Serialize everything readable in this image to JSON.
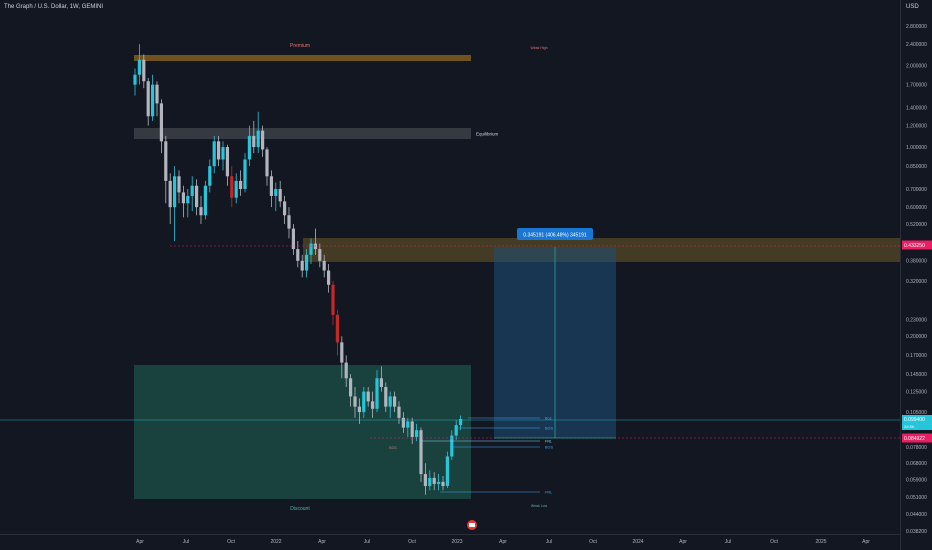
{
  "header": {
    "title": "The Graph / U.S. Dollar, 1W, GEMINI",
    "currency": "USD"
  },
  "colors": {
    "background": "#131722",
    "up": "#26c6da",
    "down": "#b2b5be",
    "down_highlight": "#c62828",
    "premium": "#7a5a1f",
    "equilibrium": "#3a3d46",
    "discount": "#1b4a44",
    "supply": "#6b5a25",
    "target_zone": "#1e4e7a",
    "current_price": "#26c6da",
    "entry_price": "#e91e63"
  },
  "chart_data": {
    "type": "candlestick",
    "title": "The Graph / U.S. Dollar, 1W, GEMINI",
    "y_scale": "log",
    "ylim": [
      0.037,
      3.3
    ],
    "x_labels": [
      "Apr",
      "Jul",
      "Oct",
      "2022",
      "Apr",
      "Jul",
      "Oct",
      "2023",
      "Apr",
      "Jul",
      "Oct",
      "2024",
      "Apr",
      "Jul",
      "Oct",
      "2025",
      "Apr"
    ],
    "y_ticks": [
      "2.800000",
      "2.400000",
      "2.000000",
      "1.700000",
      "1.400000",
      "1.200000",
      "1.000000",
      "0.850000",
      "0.700000",
      "0.600000",
      "0.520000",
      "0.380000",
      "0.320000",
      "0.230000",
      "0.200000",
      "0.170000",
      "0.145000",
      "0.125000",
      "0.105000",
      "0.078000",
      "0.068000",
      "0.059000",
      "0.051000",
      "0.044000",
      "0.038200"
    ],
    "price_tags": {
      "current": "0.099400",
      "current_sub": "2d 8h",
      "entry": "0.084922",
      "target": "0.433250"
    },
    "zone_labels": {
      "premium": "Premium",
      "equilibrium": "Equilibrium",
      "discount": "Discount",
      "weak_high": "Weak High",
      "weak_low": "Weak Low"
    },
    "projection_label": "0.345191 (406.48%) 345191",
    "level_labels": [
      "Bos",
      "BOS",
      "FRL",
      "BOS",
      "FRL"
    ],
    "small_labels": [
      "BOS"
    ],
    "candles": [
      {
        "o": 1.7,
        "h": 1.95,
        "l": 1.55,
        "c": 1.85
      },
      {
        "o": 1.85,
        "h": 2.4,
        "l": 1.7,
        "c": 2.1
      },
      {
        "o": 2.1,
        "h": 2.2,
        "l": 1.65,
        "c": 1.75
      },
      {
        "o": 1.75,
        "h": 1.8,
        "l": 1.2,
        "c": 1.3
      },
      {
        "o": 1.3,
        "h": 1.85,
        "l": 1.25,
        "c": 1.7
      },
      {
        "o": 1.7,
        "h": 1.75,
        "l": 1.3,
        "c": 1.45
      },
      {
        "o": 1.45,
        "h": 1.5,
        "l": 0.95,
        "c": 1.05
      },
      {
        "o": 1.05,
        "h": 1.1,
        "l": 0.62,
        "c": 0.75
      },
      {
        "o": 0.75,
        "h": 0.8,
        "l": 0.52,
        "c": 0.6
      },
      {
        "o": 0.6,
        "h": 0.85,
        "l": 0.45,
        "c": 0.78
      },
      {
        "o": 0.78,
        "h": 0.82,
        "l": 0.62,
        "c": 0.68
      },
      {
        "o": 0.68,
        "h": 0.72,
        "l": 0.55,
        "c": 0.62
      },
      {
        "o": 0.62,
        "h": 0.7,
        "l": 0.55,
        "c": 0.66
      },
      {
        "o": 0.66,
        "h": 0.78,
        "l": 0.58,
        "c": 0.72
      },
      {
        "o": 0.72,
        "h": 0.76,
        "l": 0.56,
        "c": 0.6
      },
      {
        "o": 0.6,
        "h": 0.66,
        "l": 0.52,
        "c": 0.56
      },
      {
        "o": 0.56,
        "h": 0.75,
        "l": 0.54,
        "c": 0.72
      },
      {
        "o": 0.72,
        "h": 0.9,
        "l": 0.68,
        "c": 0.85
      },
      {
        "o": 0.85,
        "h": 1.1,
        "l": 0.8,
        "c": 1.05
      },
      {
        "o": 1.05,
        "h": 1.1,
        "l": 0.85,
        "c": 0.9
      },
      {
        "o": 0.9,
        "h": 1.05,
        "l": 0.82,
        "c": 1.0
      },
      {
        "o": 1.0,
        "h": 1.02,
        "l": 0.72,
        "c": 0.78
      },
      {
        "o": 0.78,
        "h": 0.85,
        "l": 0.6,
        "c": 0.65
      },
      {
        "o": 0.65,
        "h": 0.8,
        "l": 0.62,
        "c": 0.75
      },
      {
        "o": 0.75,
        "h": 0.82,
        "l": 0.66,
        "c": 0.7
      },
      {
        "o": 0.7,
        "h": 0.95,
        "l": 0.68,
        "c": 0.9
      },
      {
        "o": 0.9,
        "h": 1.2,
        "l": 0.85,
        "c": 1.1
      },
      {
        "o": 1.1,
        "h": 1.25,
        "l": 0.95,
        "c": 1.0
      },
      {
        "o": 1.0,
        "h": 1.35,
        "l": 0.95,
        "c": 1.15
      },
      {
        "o": 1.15,
        "h": 1.2,
        "l": 0.92,
        "c": 0.98
      },
      {
        "o": 0.98,
        "h": 1.0,
        "l": 0.72,
        "c": 0.78
      },
      {
        "o": 0.78,
        "h": 0.82,
        "l": 0.6,
        "c": 0.66
      },
      {
        "o": 0.66,
        "h": 0.74,
        "l": 0.58,
        "c": 0.7
      },
      {
        "o": 0.7,
        "h": 0.75,
        "l": 0.6,
        "c": 0.63
      },
      {
        "o": 0.63,
        "h": 0.66,
        "l": 0.52,
        "c": 0.56
      },
      {
        "o": 0.56,
        "h": 0.6,
        "l": 0.46,
        "c": 0.5
      },
      {
        "o": 0.5,
        "h": 0.52,
        "l": 0.4,
        "c": 0.42
      },
      {
        "o": 0.42,
        "h": 0.45,
        "l": 0.36,
        "c": 0.38
      },
      {
        "o": 0.38,
        "h": 0.4,
        "l": 0.33,
        "c": 0.35
      },
      {
        "o": 0.35,
        "h": 0.42,
        "l": 0.33,
        "c": 0.4
      },
      {
        "o": 0.4,
        "h": 0.46,
        "l": 0.37,
        "c": 0.44
      },
      {
        "o": 0.44,
        "h": 0.5,
        "l": 0.4,
        "c": 0.42
      },
      {
        "o": 0.42,
        "h": 0.44,
        "l": 0.36,
        "c": 0.38
      },
      {
        "o": 0.38,
        "h": 0.4,
        "l": 0.33,
        "c": 0.35
      },
      {
        "o": 0.35,
        "h": 0.37,
        "l": 0.29,
        "c": 0.31
      },
      {
        "o": 0.31,
        "h": 0.32,
        "l": 0.22,
        "c": 0.24
      },
      {
        "o": 0.24,
        "h": 0.25,
        "l": 0.17,
        "c": 0.19
      },
      {
        "o": 0.19,
        "h": 0.2,
        "l": 0.14,
        "c": 0.16
      },
      {
        "o": 0.16,
        "h": 0.17,
        "l": 0.13,
        "c": 0.14
      },
      {
        "o": 0.14,
        "h": 0.145,
        "l": 0.11,
        "c": 0.12
      },
      {
        "o": 0.12,
        "h": 0.13,
        "l": 0.1,
        "c": 0.11
      },
      {
        "o": 0.11,
        "h": 0.118,
        "l": 0.095,
        "c": 0.105
      },
      {
        "o": 0.105,
        "h": 0.13,
        "l": 0.1,
        "c": 0.125
      },
      {
        "o": 0.125,
        "h": 0.13,
        "l": 0.11,
        "c": 0.115
      },
      {
        "o": 0.115,
        "h": 0.125,
        "l": 0.1,
        "c": 0.108
      },
      {
        "o": 0.108,
        "h": 0.15,
        "l": 0.105,
        "c": 0.14
      },
      {
        "o": 0.14,
        "h": 0.155,
        "l": 0.125,
        "c": 0.13
      },
      {
        "o": 0.13,
        "h": 0.135,
        "l": 0.105,
        "c": 0.11
      },
      {
        "o": 0.11,
        "h": 0.125,
        "l": 0.1,
        "c": 0.12
      },
      {
        "o": 0.12,
        "h": 0.125,
        "l": 0.105,
        "c": 0.11
      },
      {
        "o": 0.11,
        "h": 0.115,
        "l": 0.095,
        "c": 0.1
      },
      {
        "o": 0.1,
        "h": 0.105,
        "l": 0.088,
        "c": 0.092
      },
      {
        "o": 0.092,
        "h": 0.1,
        "l": 0.085,
        "c": 0.097
      },
      {
        "o": 0.097,
        "h": 0.1,
        "l": 0.08,
        "c": 0.085
      },
      {
        "o": 0.085,
        "h": 0.095,
        "l": 0.082,
        "c": 0.09
      },
      {
        "o": 0.09,
        "h": 0.092,
        "l": 0.058,
        "c": 0.062
      },
      {
        "o": 0.062,
        "h": 0.068,
        "l": 0.052,
        "c": 0.056
      },
      {
        "o": 0.056,
        "h": 0.064,
        "l": 0.054,
        "c": 0.06
      },
      {
        "o": 0.06,
        "h": 0.063,
        "l": 0.054,
        "c": 0.057
      },
      {
        "o": 0.057,
        "h": 0.062,
        "l": 0.054,
        "c": 0.058
      },
      {
        "o": 0.058,
        "h": 0.061,
        "l": 0.054,
        "c": 0.056
      },
      {
        "o": 0.056,
        "h": 0.075,
        "l": 0.055,
        "c": 0.072
      },
      {
        "o": 0.072,
        "h": 0.09,
        "l": 0.07,
        "c": 0.086
      },
      {
        "o": 0.086,
        "h": 0.098,
        "l": 0.083,
        "c": 0.094
      },
      {
        "o": 0.094,
        "h": 0.102,
        "l": 0.09,
        "c": 0.099
      }
    ]
  }
}
